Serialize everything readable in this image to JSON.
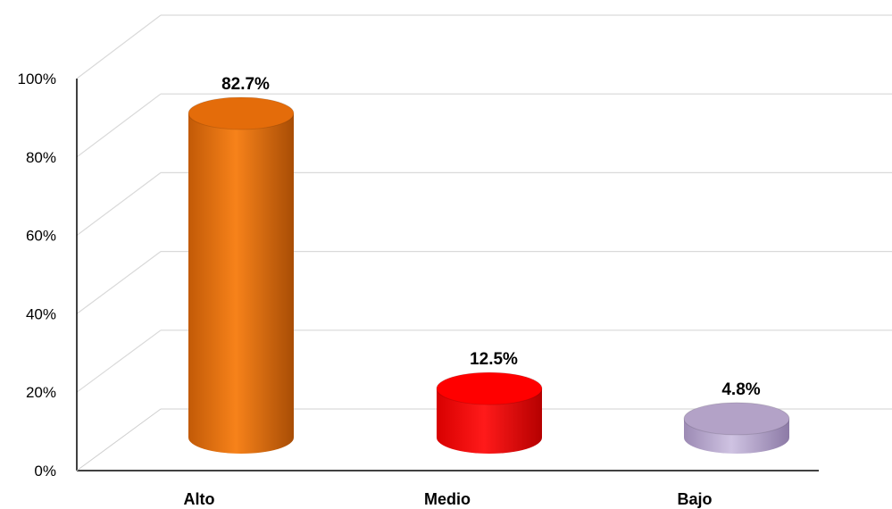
{
  "chart_data": {
    "type": "bar",
    "style": "3d-cylinder",
    "categories": [
      "Alto",
      "Medio",
      "Bajo"
    ],
    "series": [
      {
        "values": [
          82.7,
          12.5,
          4.8
        ],
        "colors": [
          "#E46C0A",
          "#FF0000",
          "#B3A2C7"
        ],
        "value_labels": [
          "82.7%",
          "12.5%",
          "4.8%"
        ]
      }
    ],
    "y_ticks": [
      "0%",
      "20%",
      "40%",
      "60%",
      "80%",
      "100%"
    ],
    "ylim": [
      0,
      100
    ],
    "y_format": "percent",
    "grid": true,
    "legend": "none"
  }
}
